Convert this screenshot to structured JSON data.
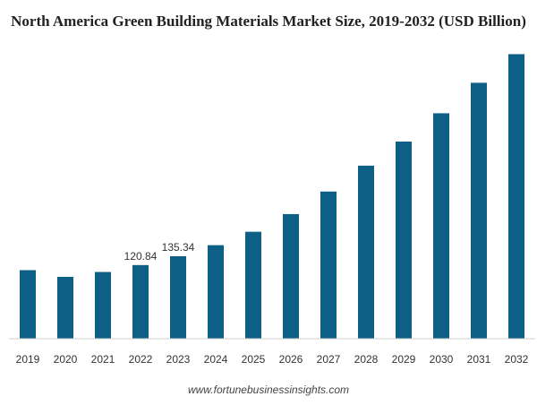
{
  "chart_data": {
    "type": "bar",
    "title": "North America Green Building Materials Market Size, 2019-2032 (USD Billion)",
    "source": "www.fortunebusinessinsights.com",
    "categories": [
      "2019",
      "2020",
      "2021",
      "2022",
      "2023",
      "2024",
      "2025",
      "2026",
      "2027",
      "2028",
      "2029",
      "2030",
      "2031",
      "2032"
    ],
    "values": [
      112.5,
      101.5,
      109.5,
      120.84,
      135.34,
      153.5,
      175.5,
      204.5,
      241.5,
      284.0,
      323.5,
      370.0,
      420.0,
      467.0
    ],
    "data_labels": {
      "3": "120.84",
      "4": "135.34"
    },
    "ylim": [
      0,
      475
    ],
    "bar_color": "#0d5f86",
    "xlabel": "",
    "ylabel": "",
    "grid": false
  }
}
